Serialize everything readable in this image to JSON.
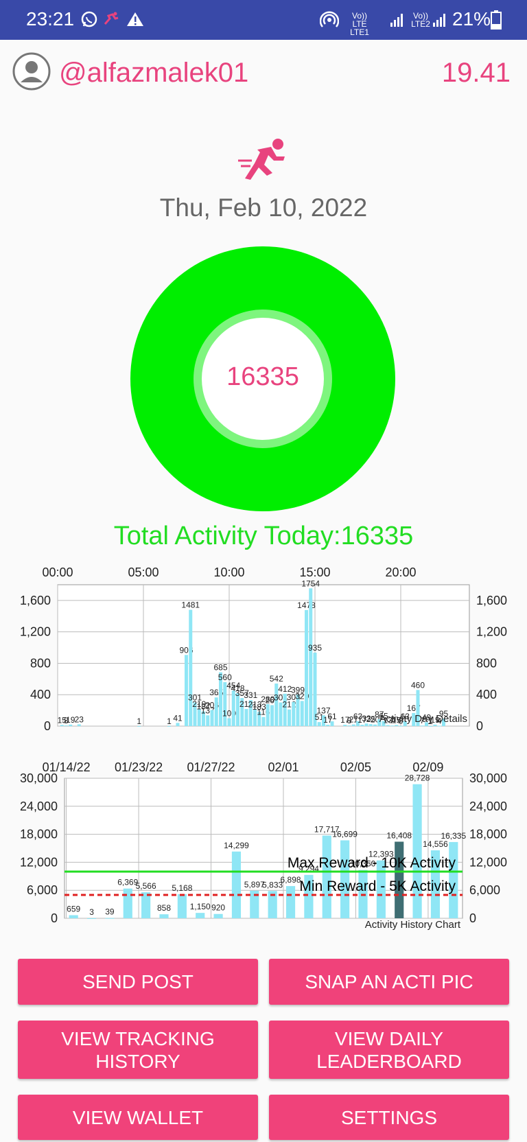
{
  "status_bar": {
    "time": "23:21",
    "net1_top": "Vo)) LTE",
    "net1_bottom": "LTE1",
    "net2_top": "Vo)) LTE2",
    "battery": "21%",
    "icons": [
      "whatsapp-icon",
      "app-notification-icon",
      "alert-icon",
      "hotspot-icon",
      "signal-icon",
      "battery-icon"
    ]
  },
  "header": {
    "username": "@alfazmalek01",
    "balance": "19.41"
  },
  "activity": {
    "date": "Thu, Feb 10, 2022",
    "donut_value": "16335",
    "total_label": "Total Activity Today:16335",
    "progress_fraction": 1.0
  },
  "colors": {
    "accent": "#e8437e",
    "green": "#22dd22",
    "bar": "#8fe6f5",
    "button": "#f0427a",
    "status_bar": "#3949a8"
  },
  "chart_data": [
    {
      "type": "bar",
      "title": "",
      "caption": "Activity Day Details",
      "x_ticks": [
        {
          "label": "00:00",
          "hour": 0
        },
        {
          "label": "05:00",
          "hour": 5
        },
        {
          "label": "10:00",
          "hour": 10
        },
        {
          "label": "15:00",
          "hour": 15
        },
        {
          "label": "20:00",
          "hour": 20
        }
      ],
      "y_ticks": [
        "0",
        "400",
        "800",
        "1,200",
        "1,600"
      ],
      "ylim": [
        0,
        1800
      ],
      "xlim": [
        0,
        24
      ],
      "grid": true,
      "bars": [
        {
          "hour": 0.25,
          "v": 15,
          "label": "15"
        },
        {
          "hour": 0.5,
          "v": 8,
          "label": "8"
        },
        {
          "hour": 0.75,
          "v": 19,
          "label": "19"
        },
        {
          "hour": 1.25,
          "v": 23,
          "label": "23"
        },
        {
          "hour": 4.75,
          "v": 1,
          "label": "1"
        },
        {
          "hour": 6.5,
          "v": 1,
          "label": "1"
        },
        {
          "hour": 7.0,
          "v": 41,
          "label": "41"
        },
        {
          "hour": 7.5,
          "v": 906,
          "label": "906"
        },
        {
          "hour": 7.75,
          "v": 1481,
          "label": "1481"
        },
        {
          "hour": 8.0,
          "v": 301,
          "label": "301"
        },
        {
          "hour": 8.25,
          "v": 219,
          "label": "219"
        },
        {
          "hour": 8.5,
          "v": 187,
          "label": "187"
        },
        {
          "hour": 8.75,
          "v": 137,
          "label": "137"
        },
        {
          "hour": 9.0,
          "v": 206,
          "label": "206"
        },
        {
          "hour": 9.25,
          "v": 365,
          "label": "365"
        },
        {
          "hour": 9.5,
          "v": 685,
          "label": "685"
        },
        {
          "hour": 9.75,
          "v": 560,
          "label": "560"
        },
        {
          "hour": 10.0,
          "v": 100,
          "label": "100"
        },
        {
          "hour": 10.25,
          "v": 454,
          "label": "454"
        },
        {
          "hour": 10.5,
          "v": 418,
          "label": "418"
        },
        {
          "hour": 10.75,
          "v": 357,
          "label": "357"
        },
        {
          "hour": 11.0,
          "v": 218,
          "label": "218"
        },
        {
          "hour": 11.25,
          "v": 331,
          "label": "331"
        },
        {
          "hour": 11.5,
          "v": 213,
          "label": "213"
        },
        {
          "hour": 11.75,
          "v": 183,
          "label": "183"
        },
        {
          "hour": 12.0,
          "v": 116,
          "label": "116"
        },
        {
          "hour": 12.25,
          "v": 280,
          "label": "280"
        },
        {
          "hour": 12.5,
          "v": 267,
          "label": "267"
        },
        {
          "hour": 12.75,
          "v": 542,
          "label": "542"
        },
        {
          "hour": 13.0,
          "v": 301,
          "label": "301"
        },
        {
          "hour": 13.25,
          "v": 412,
          "label": "412"
        },
        {
          "hour": 13.5,
          "v": 212,
          "label": "212"
        },
        {
          "hour": 13.75,
          "v": 308,
          "label": "308"
        },
        {
          "hour": 14.0,
          "v": 399,
          "label": "399"
        },
        {
          "hour": 14.25,
          "v": 320,
          "label": "320"
        },
        {
          "hour": 14.5,
          "v": 1478,
          "label": "1478"
        },
        {
          "hour": 14.75,
          "v": 1754,
          "label": "1754"
        },
        {
          "hour": 15.0,
          "v": 935,
          "label": "935"
        },
        {
          "hour": 15.25,
          "v": 51,
          "label": "51"
        },
        {
          "hour": 15.5,
          "v": 137,
          "label": "137"
        },
        {
          "hour": 15.75,
          "v": 17,
          "label": "17"
        },
        {
          "hour": 16.0,
          "v": 61,
          "label": "61"
        },
        {
          "hour": 16.75,
          "v": 17,
          "label": "17"
        },
        {
          "hour": 17.0,
          "v": 8,
          "label": "8"
        },
        {
          "hour": 17.25,
          "v": 21,
          "label": "21"
        },
        {
          "hour": 17.5,
          "v": 63,
          "label": "63"
        },
        {
          "hour": 17.75,
          "v": 17,
          "label": "17"
        },
        {
          "hour": 18.0,
          "v": 33,
          "label": "33"
        },
        {
          "hour": 18.25,
          "v": 25,
          "label": "25"
        },
        {
          "hour": 18.5,
          "v": 20,
          "label": "20"
        },
        {
          "hour": 18.75,
          "v": 87,
          "label": "87"
        },
        {
          "hour": 19.0,
          "v": 65,
          "label": "65"
        },
        {
          "hour": 19.25,
          "v": 13,
          "label": "13"
        },
        {
          "hour": 19.5,
          "v": 7,
          "label": "7"
        },
        {
          "hour": 19.75,
          "v": 15,
          "label": "15"
        },
        {
          "hour": 20.0,
          "v": 3,
          "label": "3"
        },
        {
          "hour": 20.25,
          "v": 63,
          "label": "63"
        },
        {
          "hour": 20.75,
          "v": 167,
          "label": "167"
        },
        {
          "hour": 21.0,
          "v": 460,
          "label": "460"
        },
        {
          "hour": 21.25,
          "v": 7,
          "label": "7"
        },
        {
          "hour": 21.5,
          "v": 49,
          "label": "49"
        },
        {
          "hour": 21.75,
          "v": 1,
          "label": "1"
        },
        {
          "hour": 22.0,
          "v": 19,
          "label": "19"
        },
        {
          "hour": 22.25,
          "v": 4,
          "label": "4"
        },
        {
          "hour": 22.5,
          "v": 95,
          "label": "95"
        }
      ]
    },
    {
      "type": "bar",
      "title": "",
      "caption": "Activity History Chart",
      "x_ticks": [
        {
          "label": "01/14/22",
          "idx": 0
        },
        {
          "label": "01/23/22",
          "idx": 4
        },
        {
          "label": "01/27/22",
          "idx": 8
        },
        {
          "label": "02/01",
          "idx": 12
        },
        {
          "label": "02/05",
          "idx": 16
        },
        {
          "label": "02/09",
          "idx": 20
        }
      ],
      "y_ticks": [
        "0",
        "6,000",
        "12,000",
        "18,000",
        "24,000",
        "30,000"
      ],
      "ylim": [
        0,
        30000
      ],
      "grid": true,
      "bars": [
        {
          "v": 659,
          "label": "659"
        },
        {
          "v": 3,
          "label": "3"
        },
        {
          "v": 39,
          "label": "39"
        },
        {
          "v": 6369,
          "label": "6,369"
        },
        {
          "v": 5566,
          "label": "5,566"
        },
        {
          "v": 858,
          "label": "858"
        },
        {
          "v": 5168,
          "label": "5,168"
        },
        {
          "v": 1150,
          "label": "1,150"
        },
        {
          "v": 920,
          "label": "920"
        },
        {
          "v": 14299,
          "label": "14,299"
        },
        {
          "v": 5897,
          "label": "5,897"
        },
        {
          "v": 5833,
          "label": "5,833"
        },
        {
          "v": 6898,
          "label": "6,898"
        },
        {
          "v": 9294,
          "label": "9,294"
        },
        {
          "v": 17717,
          "label": "17,717"
        },
        {
          "v": 16699,
          "label": "16,699"
        },
        {
          "v": 10350,
          "label": "10,350"
        },
        {
          "v": 12393,
          "label": "12,393"
        },
        {
          "v": 16408,
          "label": "16,408",
          "highlight": true
        },
        {
          "v": 28728,
          "label": "28,728"
        },
        {
          "v": 14556,
          "label": "14,556"
        },
        {
          "v": 16335,
          "label": "16,335"
        }
      ],
      "reference_lines": [
        {
          "name": "Max Reward - 10K Activity",
          "value": 10000,
          "style": "solid",
          "color": "#22dd22"
        },
        {
          "name": "Min Reward - 5K Activity",
          "value": 5000,
          "style": "dashed",
          "color": "#e02020"
        }
      ]
    }
  ],
  "buttons": {
    "send_post": "SEND POST",
    "snap": "SNAP AN ACTI PIC",
    "tracking_1": "VIEW TRACKING",
    "tracking_2": "HISTORY",
    "leaderboard_1": "VIEW DAILY",
    "leaderboard_2": "LEADERBOARD",
    "wallet": "VIEW WALLET",
    "settings": "SETTINGS"
  }
}
